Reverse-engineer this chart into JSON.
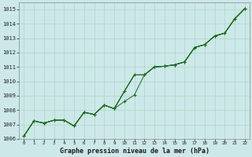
{
  "title": "Graphe pression niveau de la mer (hPa)",
  "ylim": [
    1006,
    1015.5
  ],
  "yticks": [
    1006,
    1007,
    1008,
    1009,
    1010,
    1011,
    1012,
    1013,
    1014,
    1015
  ],
  "bg_color": "#cce8e8",
  "grid_color": "#b0d4c8",
  "line_color": "#1a6b1a",
  "series_no_marker": [
    [
      1006.2,
      1007.25,
      1007.1,
      1007.3,
      1007.3,
      1006.9,
      1007.85,
      1007.7,
      1008.35,
      1008.1,
      1009.3,
      1010.45,
      1010.45,
      1011.0,
      1011.05,
      1011.15,
      1011.35,
      1012.35,
      1012.55,
      1013.15,
      1013.35,
      1014.35,
      1015.05
    ],
    [
      1006.2,
      1007.25,
      1007.1,
      1007.3,
      1007.3,
      1006.9,
      1007.85,
      1007.7,
      1008.35,
      1008.1,
      1009.3,
      1010.45,
      1010.45,
      1011.0,
      1011.05,
      1011.15,
      1011.35,
      1012.35,
      1012.55,
      1013.15,
      1013.35,
      1014.35,
      1015.05
    ]
  ],
  "series_with_marker": [
    [
      1006.2,
      1007.25,
      1007.1,
      1007.3,
      1007.3,
      1006.9,
      1007.85,
      1007.7,
      1008.35,
      1008.1,
      1009.3,
      1010.45,
      1010.45,
      1011.0,
      1011.05,
      1011.15,
      1011.35,
      1012.35,
      1012.55,
      1013.15,
      1013.35,
      1014.35,
      1015.05
    ],
    [
      1006.2,
      1007.25,
      1007.1,
      1007.3,
      1007.3,
      1006.9,
      1007.85,
      1007.7,
      1008.35,
      1008.1,
      1008.6,
      1009.05,
      1010.45,
      1011.0,
      1011.05,
      1011.15,
      1011.35,
      1012.35,
      1012.55,
      1013.15,
      1013.35,
      1014.35,
      1015.05
    ]
  ],
  "figsize": [
    3.2,
    2.0
  ],
  "dpi": 100
}
